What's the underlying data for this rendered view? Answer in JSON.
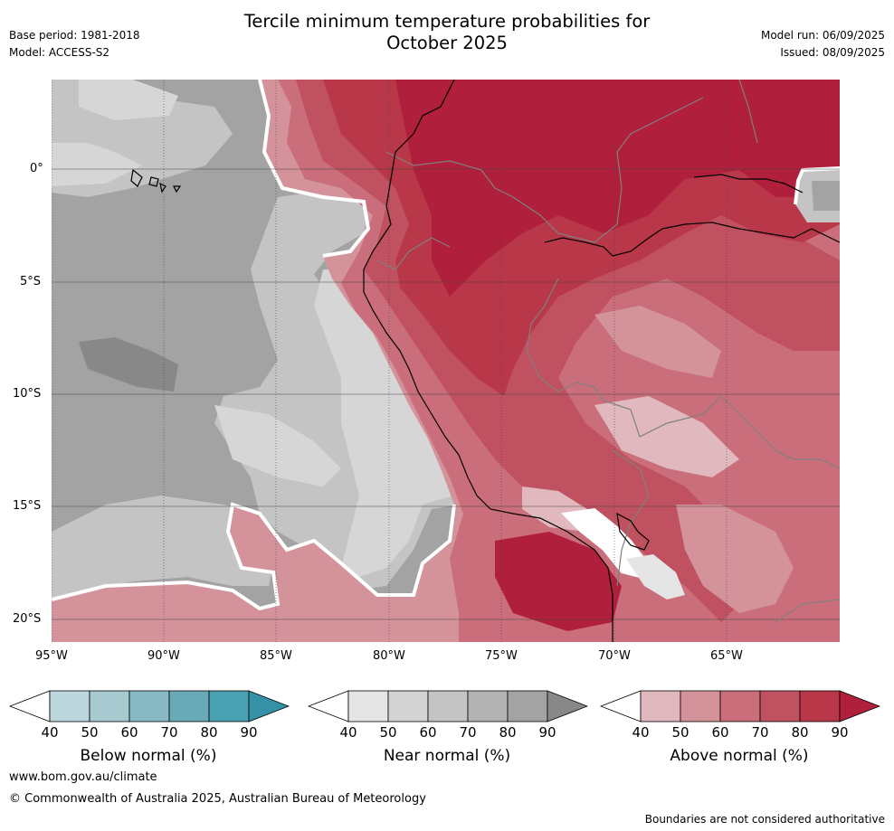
{
  "header": {
    "title_line1": "Tercile minimum temperature probabilities for",
    "title_line2": "October 2025",
    "base_period": "Base period: 1981-2018",
    "model": "Model: ACCESS-S2",
    "model_run": "Model run: 06/09/2025",
    "issued": "Issued: 08/09/2025"
  },
  "map": {
    "lat_ticks": [
      "0°",
      "5°S",
      "10°S",
      "15°S",
      "20°S"
    ],
    "lon_ticks": [
      "95°W",
      "90°W",
      "85°W",
      "80°W",
      "75°W",
      "70°W",
      "65°W"
    ],
    "colors": {
      "ocean_near_light": "#d6d6d6",
      "ocean_near_mid": "#c4c4c4",
      "ocean_near_dark": "#a3a3a3",
      "ocean_near_darkest": "#888888",
      "above_50": "#d4939a",
      "above_60": "#c96e7a",
      "above_70": "#c05160",
      "above_80": "#b83748",
      "above_90": "#b01f3b"
    }
  },
  "colorbars": [
    {
      "label": "Below normal (%)",
      "ticks": [
        "40",
        "50",
        "60",
        "70",
        "80",
        "90"
      ],
      "colors": [
        "#ffffff",
        "#bcd6dc",
        "#a7c9d0",
        "#89b9c4",
        "#6aaab8",
        "#4aa1b2",
        "#3591a6"
      ]
    },
    {
      "label": "Near normal (%)",
      "ticks": [
        "40",
        "50",
        "60",
        "70",
        "80",
        "90"
      ],
      "colors": [
        "#ffffff",
        "#e5e5e5",
        "#d3d3d3",
        "#c4c4c4",
        "#b3b3b3",
        "#a3a3a3",
        "#888888"
      ]
    },
    {
      "label": "Above normal (%)",
      "ticks": [
        "40",
        "50",
        "60",
        "70",
        "80",
        "90"
      ],
      "colors": [
        "#ffffff",
        "#e0b8bd",
        "#d4939a",
        "#c96e7a",
        "#c05160",
        "#b83748",
        "#b01f3b"
      ]
    }
  ],
  "footer": {
    "website": "www.bom.gov.au/climate",
    "copyright": "© Commonwealth of Australia 2025, Australian Bureau of Meteorology",
    "disclaimer": "Boundaries are not considered authoritative"
  }
}
